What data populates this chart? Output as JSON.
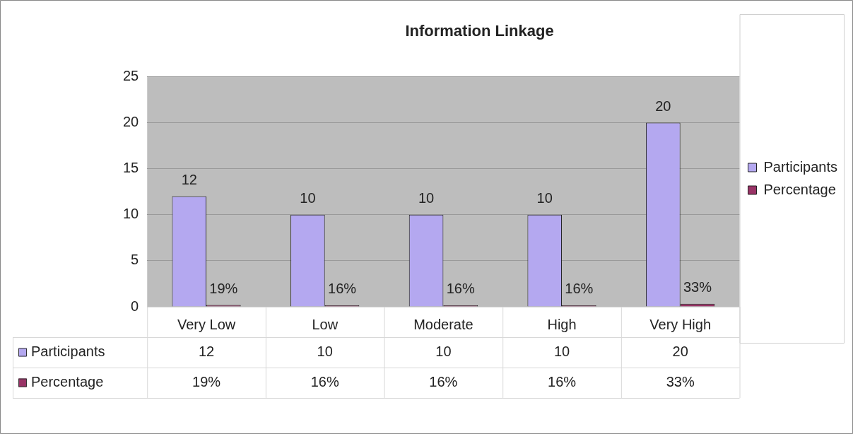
{
  "chart_data": {
    "type": "bar",
    "title": "Information Linkage",
    "categories": [
      "Very Low",
      "Low",
      "Moderate",
      "High",
      "Very High"
    ],
    "series": [
      {
        "name": "Participants",
        "color": "#b4a8f0",
        "values": [
          12,
          10,
          10,
          10,
          20
        ],
        "value_labels": [
          "12",
          "10",
          "10",
          "10",
          "20"
        ]
      },
      {
        "name": "Percentage",
        "color": "#993366",
        "values": [
          0.19,
          0.16,
          0.16,
          0.16,
          0.33
        ],
        "value_labels": [
          "19%",
          "16%",
          "16%",
          "16%",
          "33%"
        ]
      }
    ],
    "ylim": [
      0,
      25
    ],
    "yticks": [
      0,
      5,
      10,
      15,
      20,
      25
    ],
    "grid": "y",
    "legend": "right"
  }
}
